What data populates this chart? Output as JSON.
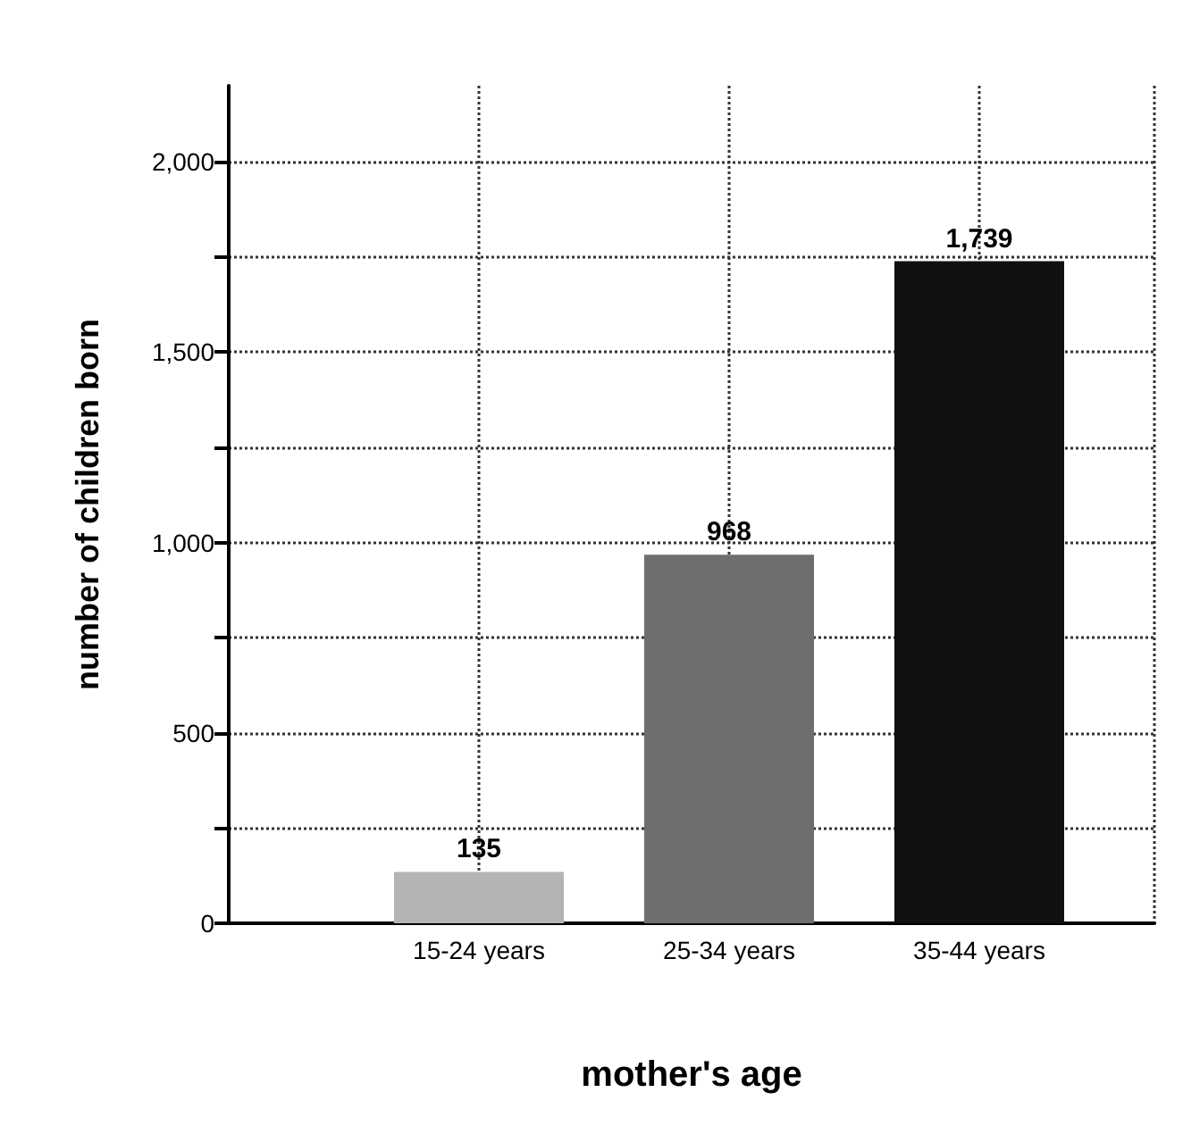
{
  "chart_data": {
    "type": "bar",
    "xlabel": "mother's age",
    "ylabel": "number of children born",
    "categories": [
      "15-24 years",
      "25-34 years",
      "35-44 years"
    ],
    "values": [
      135,
      968,
      1739
    ],
    "value_labels": [
      "135",
      "968",
      "1,739"
    ],
    "colors": [
      "#b4b4b4",
      "#6e6e6e",
      "#111111"
    ],
    "ylim": [
      0,
      2200
    ],
    "yticks": [
      0,
      {
        "value": 250,
        "label": null
      },
      500,
      {
        "value": 750,
        "label": null
      },
      {
        "value": 1000,
        "label": "1,000"
      },
      {
        "value": 1250,
        "label": null
      },
      {
        "value": 1500,
        "label": "1,500"
      },
      {
        "value": 1750,
        "label": null
      },
      {
        "value": 2000,
        "label": "2,000"
      }
    ],
    "grid": true
  }
}
